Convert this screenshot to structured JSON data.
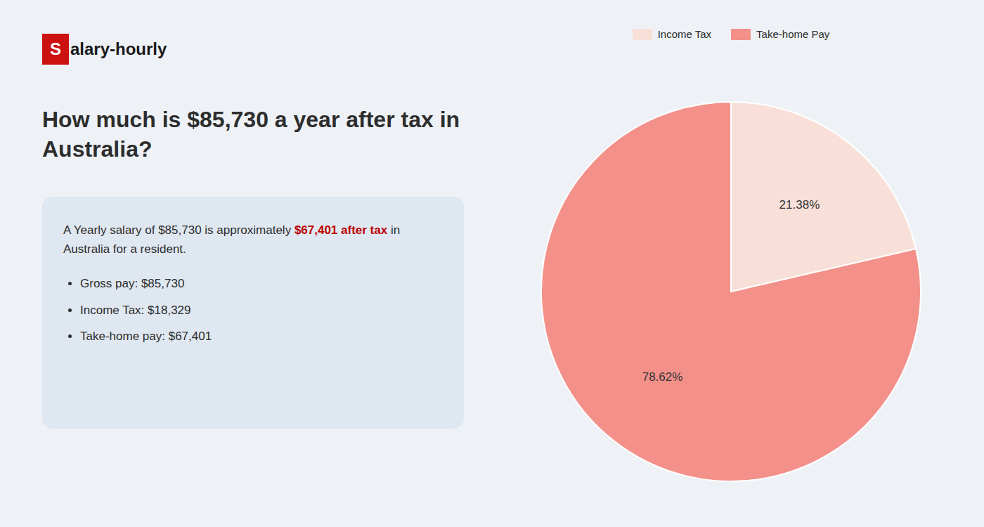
{
  "chart_data": {
    "type": "pie",
    "title": "How much is $85,730 a year after tax in Australia?",
    "annotations": [
      "S",
      "alary-hourly",
      "A Yearly salary of $85,730 is approximately ",
      "$67,401 after tax",
      " in",
      "Australia for a resident.",
      "Gross pay: $85,730",
      "Income Tax: $18,329",
      "Take-home pay: $67,401"
    ],
    "categories": [
      "Income Tax",
      "Take-home Pay"
    ],
    "values": [
      21.38,
      78.62
    ],
    "value_labels": [
      "21.38%",
      "78.62%"
    ],
    "colors": [
      "#f8e0d8",
      "#f4908a"
    ],
    "data_labels": true,
    "legend": "top"
  }
}
